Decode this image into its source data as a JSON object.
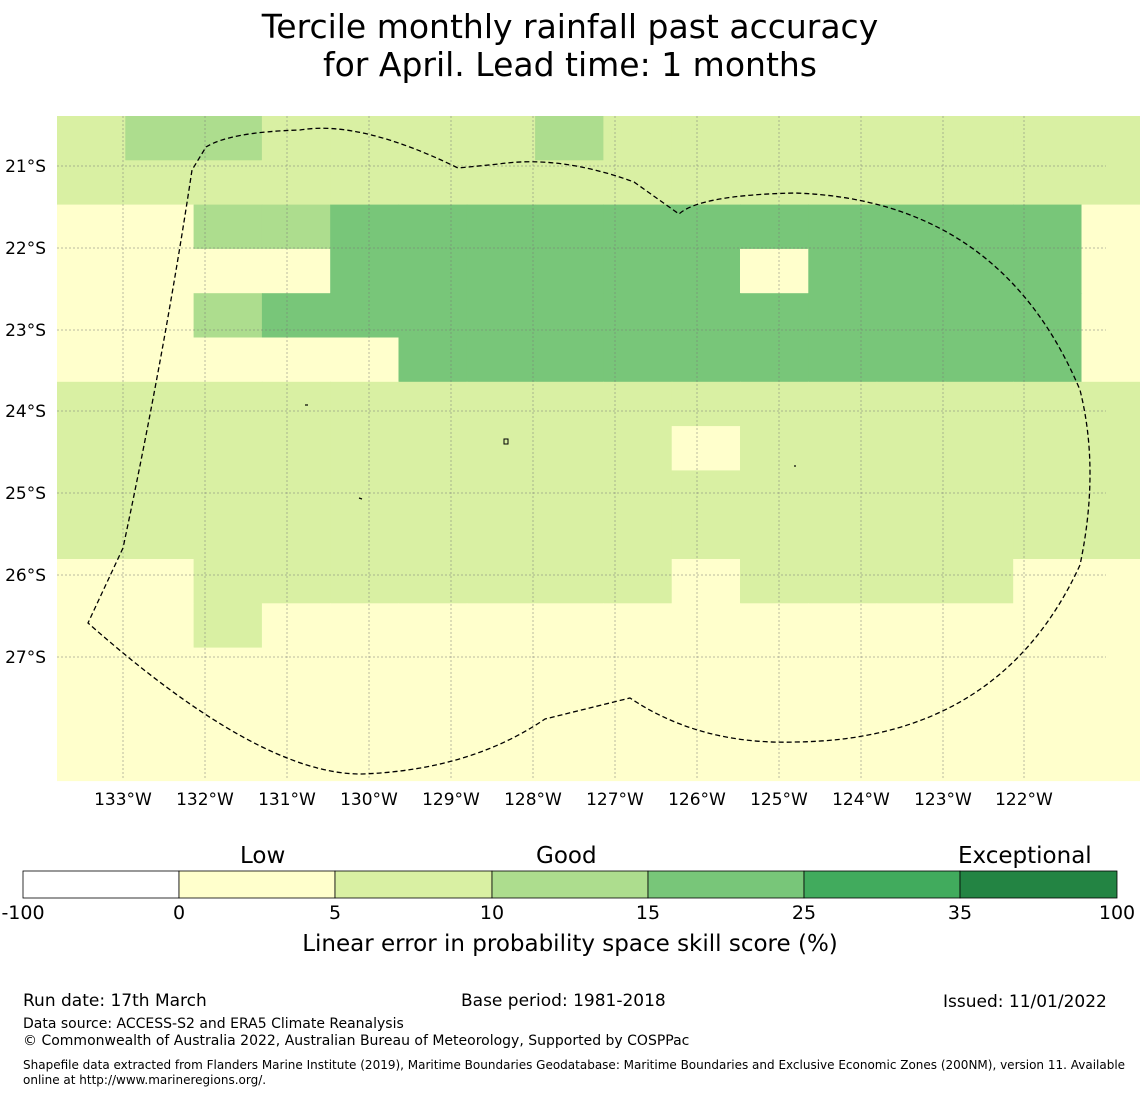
{
  "title": {
    "line1": "Tercile monthly rainfall past accuracy",
    "line2": "for April. Lead time: 1 months"
  },
  "map": {
    "lon_labels": [
      "133°W",
      "132°W",
      "131°W",
      "130°W",
      "129°W",
      "128°W",
      "127°W",
      "126°W",
      "125°W",
      "124°W",
      "123°W",
      "122°W"
    ],
    "lat_labels": [
      "21°S",
      "22°S",
      "23°S",
      "24°S",
      "25°S",
      "26°S",
      "27°S"
    ],
    "grid_rows": [
      "2332222322222222",
      "2222222222222222",
      "1133444444444441",
      "1111444444144441",
      "1134444444444441",
      "1111144444444441",
      "2222222222222222",
      "2222222221222222",
      "2222222222222222",
      "2222222222222222",
      "1122222221222211",
      "1121111111111111",
      "1111111111111111",
      "1111111111111111",
      "1111111111111111"
    ]
  },
  "colorbar": {
    "categories": [
      "Low",
      "Good",
      "Exceptional"
    ],
    "ticks": [
      "-100",
      "0",
      "5",
      "10",
      "15",
      "25",
      "35",
      "100"
    ],
    "colors": [
      "#ffffff",
      "#ffffcc",
      "#d9f0a3",
      "#addd8e",
      "#78c679",
      "#41ab5d",
      "#238443"
    ],
    "label": "Linear error in probability space skill score (%)"
  },
  "footer": {
    "run_date": "Run date: 17th March",
    "base_period": "Base period: 1981-2018",
    "issued": "Issued: 11/01/2022",
    "data_source": "Data source: ACCESS-S2 and ERA5 Climate Reanalysis",
    "copyright": "© Commonwealth of Australia 2022, Australian Bureau of Meteorology, Supported by COSPPac",
    "shapefile": "Shapefile data extracted from Flanders Marine Institute (2019), Maritime Boundaries Geodatabase: Maritime Boundaries and Exclusive Economic Zones (200NM), version 11. Available online at http://www.marineregions.org/."
  }
}
